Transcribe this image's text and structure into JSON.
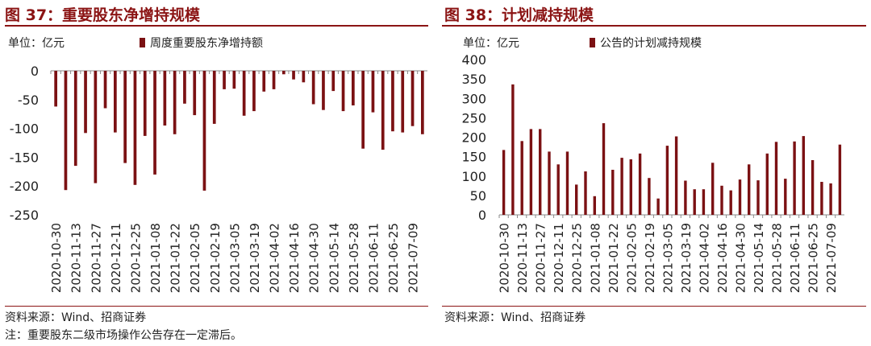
{
  "colors": {
    "bar": "#7b1113",
    "title": "#8b1414",
    "axis": "#8a8a8a",
    "text": "#222222"
  },
  "footers": {
    "source_left": "资料来源：Wind、招商证券",
    "note_left": "注：重要股东二级市场操作公告存在一定滞后。",
    "source_right": "资料来源：Wind、招商证券"
  },
  "chart_data": [
    {
      "type": "bar",
      "title": "图 37：重要股东净增持规模",
      "unit_label": "单位：亿元",
      "legend": "周度重要股东净增持额",
      "ylim": [
        -250,
        0
      ],
      "yticks": [
        0,
        -50,
        -100,
        -150,
        -200,
        -250
      ],
      "tick_labels": [
        "2020-10-30",
        "2020-11-13",
        "2020-11-27",
        "2020-12-11",
        "2020-12-25",
        "2021-01-08",
        "2021-01-22",
        "2021-02-05",
        "2021-02-19",
        "2021-03-05",
        "2021-03-19",
        "2021-04-02",
        "2021-04-16",
        "2021-04-30",
        "2021-05-14",
        "2021-05-28",
        "2021-06-11",
        "2021-06-25",
        "2021-07-09"
      ],
      "values": [
        -62,
        -207,
        -165,
        -108,
        -195,
        -65,
        -107,
        -160,
        -198,
        -113,
        -180,
        -95,
        -110,
        -57,
        -77,
        -208,
        -92,
        -32,
        -31,
        -78,
        -70,
        -36,
        -32,
        -6,
        -15,
        -20,
        -58,
        -68,
        -35,
        -70,
        -60,
        -135,
        -72,
        -137,
        -105,
        -107,
        -96,
        -110
      ]
    },
    {
      "type": "bar",
      "title": "图 38：计划减持规模",
      "unit_label": "单位：亿元",
      "legend": "公告的计划减持规模",
      "ylim": [
        0,
        400
      ],
      "yticks": [
        0,
        50,
        100,
        150,
        200,
        250,
        300,
        350,
        400
      ],
      "tick_labels": [
        "2020-10-30",
        "2020-11-13",
        "2020-11-27",
        "2020-12-11",
        "2020-12-25",
        "2021-01-08",
        "2021-01-22",
        "2021-02-05",
        "2021-02-19",
        "2021-03-05",
        "2021-03-19",
        "2021-04-02",
        "2021-04-16",
        "2021-04-30",
        "2021-05-14",
        "2021-05-28",
        "2021-06-11",
        "2021-06-25",
        "2021-07-09"
      ],
      "values": [
        167,
        336,
        190,
        221,
        221,
        163,
        130,
        163,
        78,
        112,
        48,
        236,
        116,
        147,
        143,
        158,
        95,
        42,
        178,
        202,
        88,
        66,
        66,
        134,
        75,
        63,
        91,
        130,
        89,
        158,
        188,
        93,
        189,
        203,
        141,
        85,
        81,
        181
      ]
    }
  ]
}
